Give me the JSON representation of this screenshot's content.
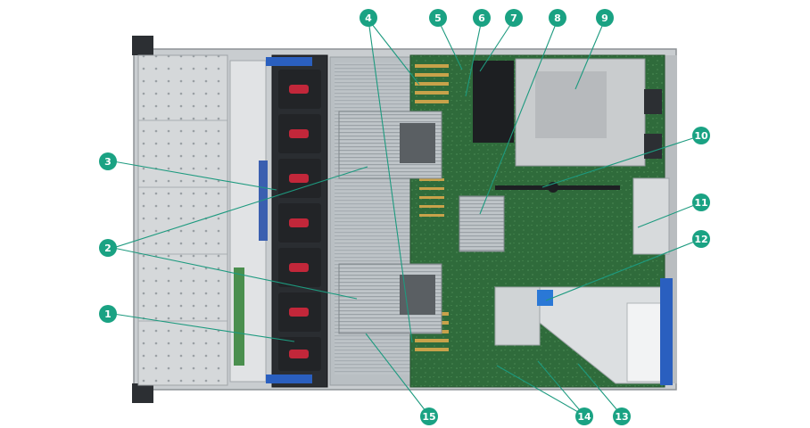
{
  "callouts": [
    {
      "num": "1"
    },
    {
      "num": "2"
    },
    {
      "num": "3"
    },
    {
      "num": "4"
    },
    {
      "num": "5"
    },
    {
      "num": "6"
    },
    {
      "num": "7"
    },
    {
      "num": "8"
    },
    {
      "num": "9"
    },
    {
      "num": "10"
    },
    {
      "num": "11"
    },
    {
      "num": "12"
    },
    {
      "num": "13"
    },
    {
      "num": "14"
    },
    {
      "num": "15"
    }
  ],
  "colors": {
    "callout": "#1aa283",
    "leader": "#1d9a7f",
    "motherboard": "#2f6b3b",
    "chassis": "#c9cdd0",
    "heatsink": "#b5bbbf",
    "fan": "#222427",
    "fan_accent": "#c2273a",
    "blue_accent": "#2a5fbf"
  },
  "icons": [
    "server-chassis-illustration"
  ]
}
